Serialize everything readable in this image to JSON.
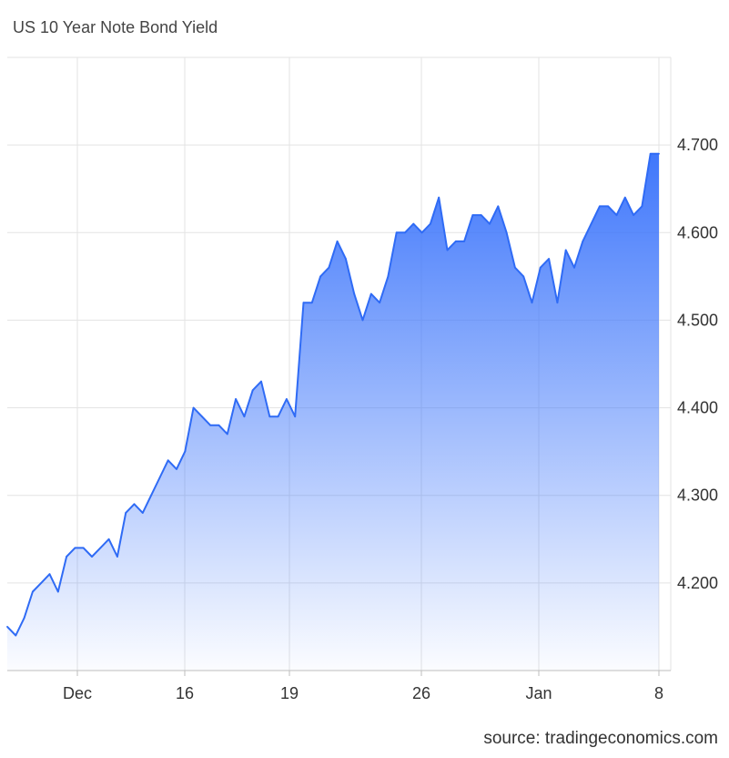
{
  "chart_data": {
    "type": "area",
    "title": "US 10 Year Note Bond Yield",
    "xlabel": "",
    "ylabel": "",
    "x_ticks": [
      "Dec",
      "16",
      "19",
      "26",
      "Jan",
      "8"
    ],
    "y_ticks": [
      "4.200",
      "4.300",
      "4.400",
      "4.500",
      "4.600",
      "4.700"
    ],
    "ylim": [
      4.1,
      4.8
    ],
    "grid": true,
    "legend": "none",
    "series": [
      {
        "values": [
          4.15,
          4.14,
          4.16,
          4.19,
          4.2,
          4.21,
          4.19,
          4.23,
          4.24,
          4.24,
          4.23,
          4.24,
          4.25,
          4.23,
          4.28,
          4.29,
          4.28,
          4.3,
          4.32,
          4.34,
          4.33,
          4.35,
          4.4,
          4.39,
          4.38,
          4.38,
          4.37,
          4.41,
          4.39,
          4.42,
          4.43,
          4.39,
          4.39,
          4.41,
          4.39,
          4.52,
          4.52,
          4.55,
          4.56,
          4.59,
          4.57,
          4.53,
          4.5,
          4.53,
          4.52,
          4.55,
          4.6,
          4.6,
          4.61,
          4.6,
          4.61,
          4.64,
          4.58,
          4.59,
          4.59,
          4.62,
          4.62,
          4.61,
          4.63,
          4.6,
          4.56,
          4.55,
          4.52,
          4.56,
          4.57,
          4.52,
          4.58,
          4.56,
          4.59,
          4.61,
          4.63,
          4.63,
          4.62,
          4.64,
          4.62,
          4.63,
          4.69,
          4.69
        ]
      }
    ]
  },
  "source_text": "source: tradingeconomics.com",
  "colors": {
    "line": "#2f6bf5",
    "area_top": "#3f77fb",
    "area_bottom": "#ffffff",
    "grid": "#e3e3e3",
    "axis": "#bdbdbd"
  }
}
